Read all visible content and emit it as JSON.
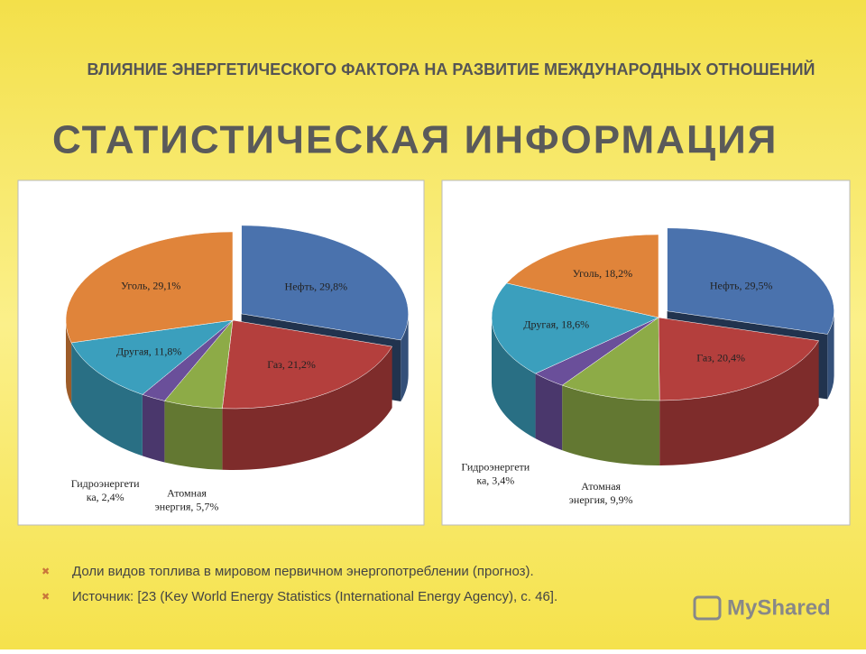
{
  "header": "ВЛИЯНИЕ ЭНЕРГЕТИЧЕСКОГО ФАКТОРА НА РАЗВИТИЕ МЕЖДУНАРОДНЫХ ОТНОШЕНИЙ",
  "title": "СТАТИСТИЧЕСКАЯ ИНФОРМАЦИЯ",
  "chart_data": [
    {
      "type": "pie",
      "values": [
        29.8,
        21.2,
        5.7,
        2.4,
        11.8,
        29.1
      ],
      "value_labels": [
        "Нефть, 29,8%",
        "Газ, 21,2%",
        "Атомная\nэнергия, 5,7%",
        "Гидроэнергети\nка, 2,4%",
        "Другая, 11,8%",
        "Уголь, 29,1%"
      ],
      "colors": [
        "#4a72ad",
        "#b43f3d",
        "#8dab47",
        "#6a4f9a",
        "#3b9fbd",
        "#e0843a"
      ]
    },
    {
      "type": "pie",
      "values": [
        29.5,
        20.4,
        9.9,
        3.4,
        18.6,
        18.2
      ],
      "value_labels": [
        "Нефть, 29,5%",
        "Газ, 20,4%",
        "Атомная\nэнергия, 9,9%",
        "Гидроэнергети\nка, 3,4%",
        "Другая, 18,6%",
        "Уголь, 18,2%"
      ],
      "colors": [
        "#4a72ad",
        "#b43f3d",
        "#8dab47",
        "#6a4f9a",
        "#3b9fbd",
        "#e0843a"
      ]
    }
  ],
  "bullets": [
    "Доли видов топлива в мировом первичном энергопотреблении (прогноз).",
    "Источник: [23 (Key World Energy Statistics (International Energy Agency), с. 46]."
  ],
  "watermark": "MyShared"
}
